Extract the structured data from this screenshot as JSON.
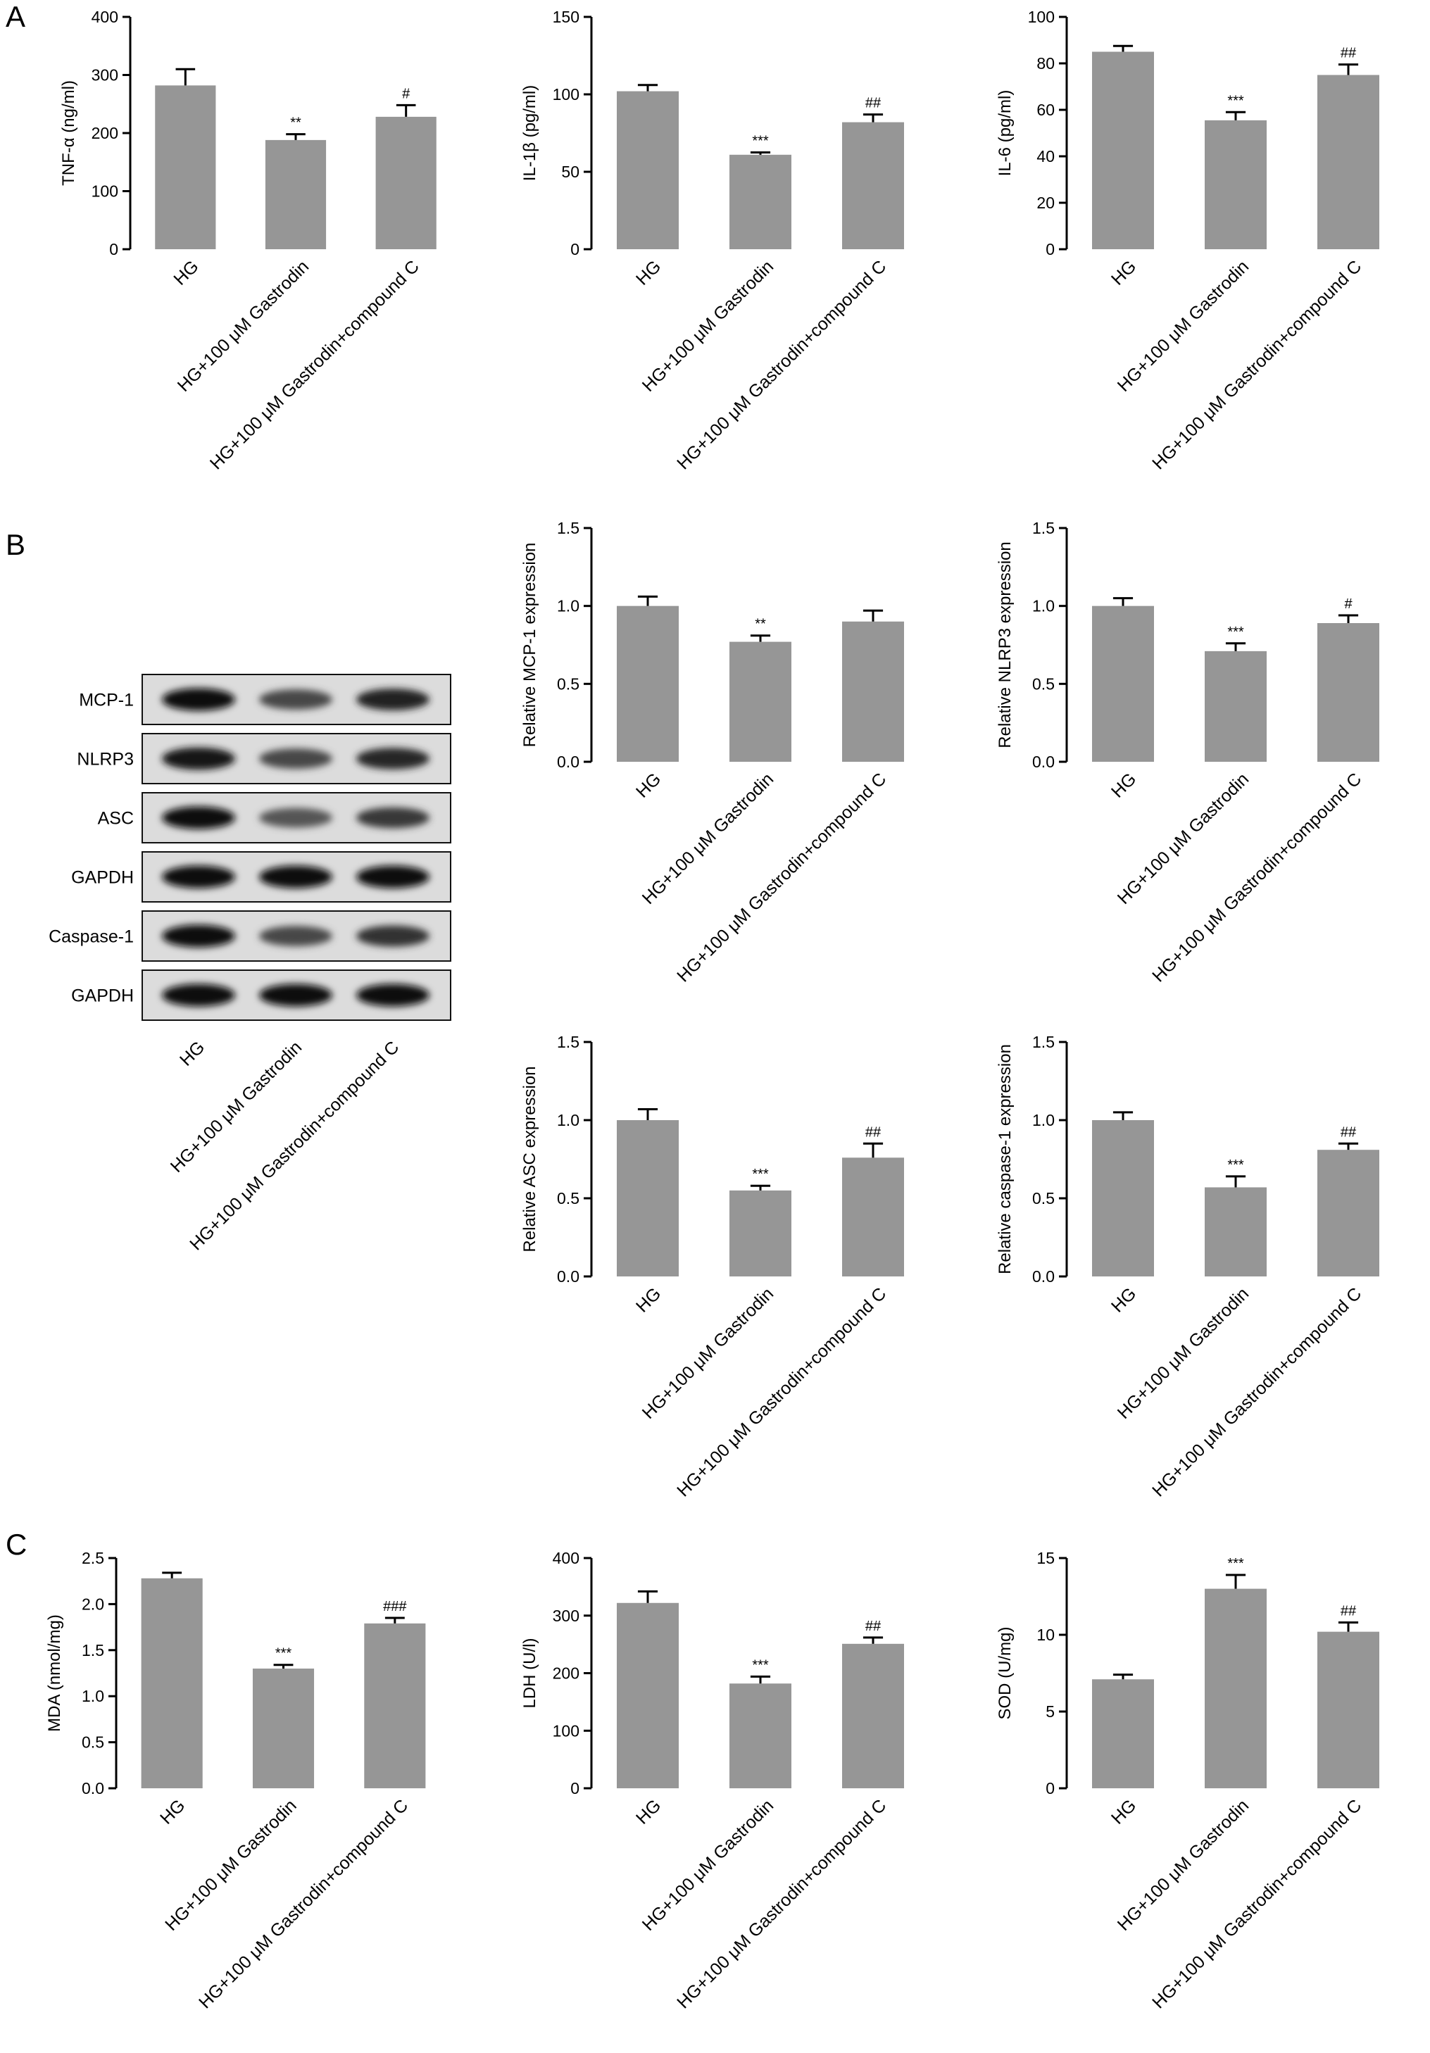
{
  "panels": [
    {
      "id": "A",
      "label": "A"
    },
    {
      "id": "B",
      "label": "B"
    },
    {
      "id": "C",
      "label": "C"
    }
  ],
  "categories": [
    "HG",
    "HG+100 μM Gastrodin",
    "HG+100 μM Gastrodin+compound C"
  ],
  "bar_color": "#969696",
  "chart_data": [
    {
      "panel": "A",
      "type": "bar",
      "ylabel": "TNF-α (ng/ml)",
      "yticks": [
        0,
        100,
        200,
        300,
        400
      ],
      "ylim": [
        0,
        400
      ],
      "categories": [
        "HG",
        "HG+100 μM Gastrodin",
        "HG+100 μM Gastrodin+compound C"
      ],
      "values": [
        282,
        188,
        228
      ],
      "errors": [
        28,
        10,
        20
      ],
      "annotations": [
        "",
        "**",
        "#"
      ]
    },
    {
      "panel": "A",
      "type": "bar",
      "ylabel": "IL-1β (pg/ml)",
      "yticks": [
        0,
        50,
        100,
        150
      ],
      "ylim": [
        0,
        150
      ],
      "categories": [
        "HG",
        "HG+100 μM Gastrodin",
        "HG+100 μM Gastrodin+compound C"
      ],
      "values": [
        102,
        61,
        82
      ],
      "errors": [
        4,
        1.5,
        5
      ],
      "annotations": [
        "",
        "***",
        "##"
      ]
    },
    {
      "panel": "A",
      "type": "bar",
      "ylabel": "IL-6 (pg/ml)",
      "yticks": [
        0,
        20,
        40,
        60,
        80,
        100
      ],
      "ylim": [
        0,
        100
      ],
      "categories": [
        "HG",
        "HG+100 μM Gastrodin",
        "HG+100 μM Gastrodin+compound C"
      ],
      "values": [
        85,
        55.5,
        75
      ],
      "errors": [
        2.5,
        3.5,
        4.5
      ],
      "annotations": [
        "",
        "***",
        "##"
      ]
    },
    {
      "panel": "B",
      "type": "bar",
      "ylabel": "Relative MCP-1 expression",
      "yticks": [
        "0.0",
        "0.5",
        "1.0",
        "1.5"
      ],
      "ylim": [
        0,
        1.5
      ],
      "categories": [
        "HG",
        "HG+100 μM Gastrodin",
        "HG+100 μM Gastrodin+compound C"
      ],
      "values": [
        1.0,
        0.77,
        0.9
      ],
      "errors": [
        0.06,
        0.04,
        0.07
      ],
      "annotations": [
        "",
        "**",
        ""
      ]
    },
    {
      "panel": "B",
      "type": "bar",
      "ylabel": "Relative NLRP3 expression",
      "yticks": [
        "0.0",
        "0.5",
        "1.0",
        "1.5"
      ],
      "ylim": [
        0,
        1.5
      ],
      "categories": [
        "HG",
        "HG+100 μM Gastrodin",
        "HG+100 μM Gastrodin+compound C"
      ],
      "values": [
        1.0,
        0.71,
        0.89
      ],
      "errors": [
        0.05,
        0.05,
        0.05
      ],
      "annotations": [
        "",
        "***",
        "#"
      ]
    },
    {
      "panel": "B",
      "type": "bar",
      "ylabel": "Relative ASC expression",
      "yticks": [
        "0.0",
        "0.5",
        "1.0",
        "1.5"
      ],
      "ylim": [
        0,
        1.5
      ],
      "categories": [
        "HG",
        "HG+100 μM Gastrodin",
        "HG+100 μM Gastrodin+compound C"
      ],
      "values": [
        1.0,
        0.55,
        0.76
      ],
      "errors": [
        0.07,
        0.03,
        0.09
      ],
      "annotations": [
        "",
        "***",
        "##"
      ]
    },
    {
      "panel": "B",
      "type": "bar",
      "ylabel": "Relative caspase-1 expression",
      "yticks": [
        "0.0",
        "0.5",
        "1.0",
        "1.5"
      ],
      "ylim": [
        0,
        1.5
      ],
      "categories": [
        "HG",
        "HG+100 μM Gastrodin",
        "HG+100 μM Gastrodin+compound C"
      ],
      "values": [
        1.0,
        0.57,
        0.81
      ],
      "errors": [
        0.05,
        0.07,
        0.04
      ],
      "annotations": [
        "",
        "***",
        "##"
      ]
    },
    {
      "panel": "C",
      "type": "bar",
      "ylabel": "MDA (nmol/mg)",
      "yticks": [
        "0.0",
        "0.5",
        "1.0",
        "1.5",
        "2.0",
        "2.5"
      ],
      "ylim": [
        0,
        2.5
      ],
      "categories": [
        "HG",
        "HG+100 μM Gastrodin",
        "HG+100 μM Gastrodin+compound C"
      ],
      "values": [
        2.28,
        1.3,
        1.79
      ],
      "errors": [
        0.06,
        0.04,
        0.06
      ],
      "annotations": [
        "",
        "***",
        "###"
      ]
    },
    {
      "panel": "C",
      "type": "bar",
      "ylabel": "LDH (U/l)",
      "yticks": [
        0,
        100,
        200,
        300,
        400
      ],
      "ylim": [
        0,
        400
      ],
      "categories": [
        "HG",
        "HG+100 μM Gastrodin",
        "HG+100 μM Gastrodin+compound C"
      ],
      "values": [
        322,
        182,
        251
      ],
      "errors": [
        20,
        12,
        11
      ],
      "annotations": [
        "",
        "***",
        "##"
      ]
    },
    {
      "panel": "C",
      "type": "bar",
      "ylabel": "SOD (U/mg)",
      "yticks": [
        0,
        5,
        10,
        15
      ],
      "ylim": [
        0,
        15
      ],
      "categories": [
        "HG",
        "HG+100 μM Gastrodin",
        "HG+100 μM Gastrodin+compound C"
      ],
      "values": [
        7.1,
        13.0,
        10.2
      ],
      "errors": [
        0.3,
        0.9,
        0.6
      ],
      "annotations": [
        "",
        "***",
        "##"
      ]
    }
  ],
  "western_blot": {
    "bands": [
      {
        "label": "MCP-1",
        "intensity": [
          1.0,
          0.6,
          0.85
        ]
      },
      {
        "label": "NLRP3",
        "intensity": [
          0.95,
          0.6,
          0.8
        ]
      },
      {
        "label": "ASC",
        "intensity": [
          1.0,
          0.5,
          0.7
        ]
      },
      {
        "label": "GAPDH",
        "intensity": [
          1.0,
          1.0,
          1.0
        ]
      },
      {
        "label": "Caspase-1",
        "intensity": [
          1.0,
          0.6,
          0.75
        ]
      },
      {
        "label": "GAPDH",
        "intensity": [
          1.0,
          1.0,
          1.0
        ]
      }
    ],
    "lanes": [
      "HG",
      "HG+100 μM Gastrodin",
      "HG+100 μM Gastrodin+compound C"
    ]
  }
}
